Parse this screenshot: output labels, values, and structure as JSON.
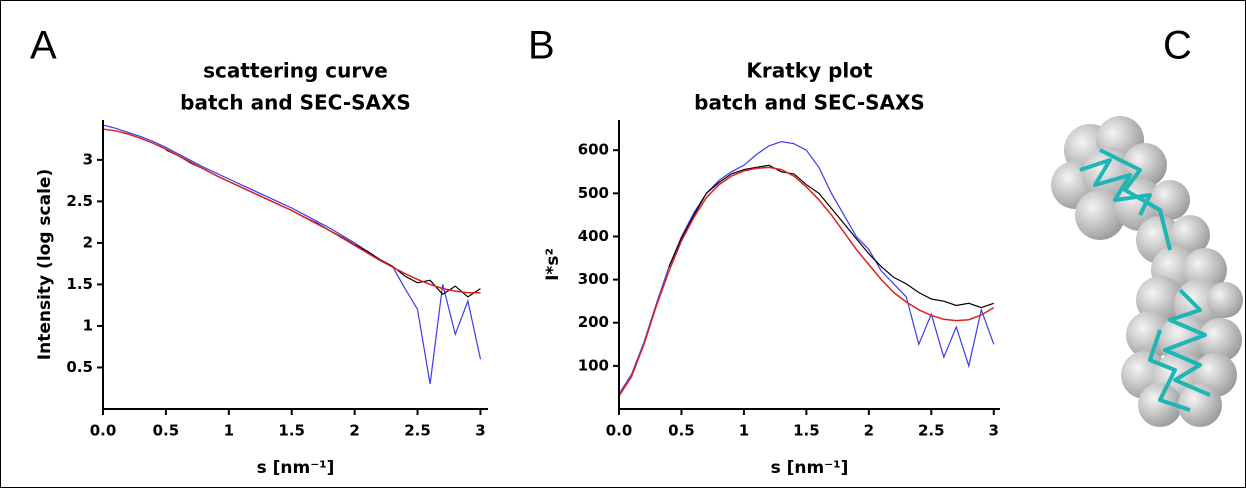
{
  "chart_data": [
    {
      "type": "line",
      "panel_label": "A",
      "title": "scattering curve",
      "subtitle": "batch and SEC-SAXS",
      "x_label": "s [nm⁻¹]",
      "y_label": "Intensity (log scale)",
      "xlim": [
        0,
        3.06
      ],
      "ylim": [
        0,
        3.48
      ],
      "xticks": [
        {
          "value": 0,
          "label": "0.0"
        },
        0.5,
        1,
        1.5,
        2,
        2.5,
        3
      ],
      "yticks": [
        0.5,
        1,
        1.5,
        2,
        2.5,
        3
      ],
      "x": [
        0,
        0.1,
        0.2,
        0.3,
        0.4,
        0.5,
        0.6,
        0.7,
        0.8,
        0.9,
        1.0,
        1.1,
        1.2,
        1.3,
        1.4,
        1.5,
        1.6,
        1.7,
        1.8,
        1.9,
        2.0,
        2.1,
        2.2,
        2.3,
        2.4,
        2.5,
        2.6,
        2.7,
        2.8,
        2.9,
        3.0
      ],
      "series": [
        {
          "color": "#3b3bf0",
          "values": [
            3.42,
            3.38,
            3.33,
            3.28,
            3.22,
            3.15,
            3.07,
            2.99,
            2.91,
            2.84,
            2.77,
            2.7,
            2.63,
            2.56,
            2.49,
            2.42,
            2.34,
            2.26,
            2.18,
            2.09,
            2.0,
            1.9,
            1.8,
            1.72,
            1.45,
            1.2,
            0.3,
            1.5,
            0.9,
            1.3,
            0.6
          ]
        },
        {
          "color": "#000000",
          "values": [
            null,
            null,
            null,
            null,
            null,
            3.12,
            3.05,
            2.96,
            2.89,
            2.81,
            2.74,
            2.67,
            2.6,
            2.53,
            2.46,
            2.39,
            2.31,
            2.24,
            2.15,
            2.07,
            1.98,
            1.9,
            1.8,
            1.72,
            1.6,
            1.52,
            1.55,
            1.38,
            1.48,
            1.35,
            1.45
          ]
        },
        {
          "color": "#e02020",
          "values": [
            3.37,
            3.35,
            3.31,
            3.26,
            3.2,
            3.13,
            3.05,
            2.97,
            2.89,
            2.81,
            2.74,
            2.67,
            2.6,
            2.53,
            2.46,
            2.39,
            2.31,
            2.23,
            2.15,
            2.06,
            1.97,
            1.88,
            1.79,
            1.71,
            1.63,
            1.56,
            1.5,
            1.45,
            1.42,
            1.4,
            1.4
          ]
        }
      ]
    },
    {
      "type": "line",
      "panel_label": "B",
      "title": "Kratky plot",
      "subtitle": "batch and SEC-SAXS",
      "x_label": "s [nm⁻¹]",
      "y_label": "I*s²",
      "xlim": [
        0,
        3.05
      ],
      "ylim": [
        0,
        670
      ],
      "xticks": [
        {
          "value": 0,
          "label": "0.0"
        },
        0.5,
        1,
        1.5,
        2,
        2.5,
        3
      ],
      "yticks": [
        100,
        200,
        300,
        400,
        500,
        600
      ],
      "x": [
        0,
        0.1,
        0.2,
        0.3,
        0.4,
        0.5,
        0.6,
        0.7,
        0.8,
        0.9,
        1.0,
        1.1,
        1.2,
        1.3,
        1.4,
        1.5,
        1.6,
        1.7,
        1.8,
        1.9,
        2.0,
        2.1,
        2.2,
        2.3,
        2.4,
        2.5,
        2.6,
        2.7,
        2.8,
        2.9,
        3.0
      ],
      "series": [
        {
          "color": "#3b3bf0",
          "values": [
            35,
            80,
            155,
            245,
            330,
            400,
            455,
            500,
            530,
            550,
            565,
            590,
            610,
            620,
            615,
            600,
            560,
            500,
            450,
            400,
            370,
            320,
            290,
            260,
            150,
            220,
            120,
            190,
            100,
            230,
            150
          ]
        },
        {
          "color": "#000000",
          "values": [
            null,
            null,
            null,
            null,
            330,
            395,
            450,
            500,
            525,
            545,
            555,
            560,
            565,
            550,
            545,
            520,
            500,
            465,
            430,
            395,
            360,
            330,
            305,
            290,
            270,
            255,
            250,
            240,
            245,
            235,
            245
          ]
        },
        {
          "color": "#e02020",
          "values": [
            30,
            75,
            150,
            240,
            320,
            390,
            445,
            490,
            520,
            540,
            552,
            558,
            560,
            555,
            540,
            515,
            485,
            450,
            410,
            370,
            335,
            300,
            270,
            248,
            230,
            217,
            208,
            205,
            207,
            218,
            235
          ]
        }
      ]
    },
    {
      "type": "image",
      "panel_label": "C"
    }
  ]
}
